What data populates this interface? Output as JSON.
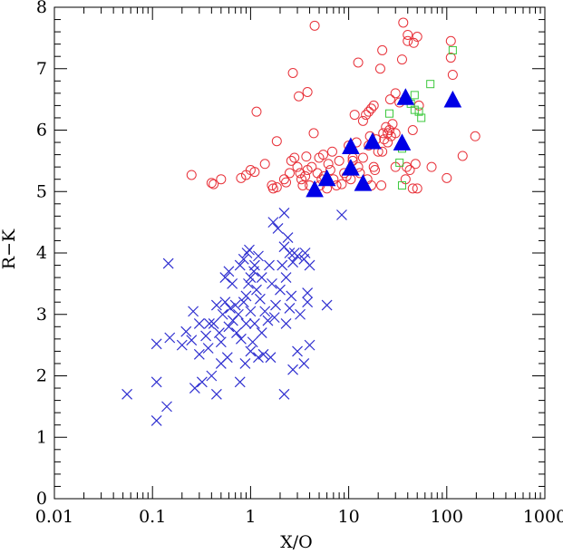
{
  "chart_data": {
    "type": "scatter",
    "xlabel": "X/O",
    "ylabel": "R−K",
    "xscale": "log",
    "xlim": [
      0.01,
      1000
    ],
    "ylim": [
      0,
      8
    ],
    "x_ticks": [
      0.01,
      0.1,
      1,
      10,
      100,
      1000
    ],
    "x_tick_labels": [
      "0.01",
      "0.1",
      "1",
      "10",
      "100",
      "1000"
    ],
    "y_ticks": [
      0,
      1,
      2,
      3,
      4,
      5,
      6,
      7,
      8
    ],
    "y_tick_labels": [
      "0",
      "1",
      "2",
      "3",
      "4",
      "5",
      "6",
      "7",
      "8"
    ],
    "grid": false,
    "series": [
      {
        "marker": "cross",
        "color": "#2f2fd0",
        "points": [
          [
            0.055,
            1.7
          ],
          [
            0.11,
            1.27
          ],
          [
            0.11,
            1.9
          ],
          [
            0.11,
            2.52
          ],
          [
            0.14,
            1.5
          ],
          [
            0.145,
            3.83
          ],
          [
            0.15,
            2.62
          ],
          [
            0.2,
            2.5
          ],
          [
            0.22,
            2.72
          ],
          [
            0.25,
            2.58
          ],
          [
            0.26,
            3.05
          ],
          [
            0.27,
            1.8
          ],
          [
            0.3,
            2.35
          ],
          [
            0.3,
            2.85
          ],
          [
            0.32,
            1.9
          ],
          [
            0.35,
            2.65
          ],
          [
            0.37,
            2.45
          ],
          [
            0.38,
            2.85
          ],
          [
            0.4,
            2.0
          ],
          [
            0.42,
            2.85
          ],
          [
            0.45,
            1.7
          ],
          [
            0.45,
            3.15
          ],
          [
            0.48,
            2.7
          ],
          [
            0.5,
            2.2
          ],
          [
            0.5,
            2.55
          ],
          [
            0.52,
            3.0
          ],
          [
            0.55,
            3.2
          ],
          [
            0.55,
            3.6
          ],
          [
            0.58,
            2.3
          ],
          [
            0.6,
            2.8
          ],
          [
            0.6,
            3.7
          ],
          [
            0.62,
            3.1
          ],
          [
            0.65,
            3.5
          ],
          [
            0.66,
            2.9
          ],
          [
            0.7,
            3.15
          ],
          [
            0.72,
            2.7
          ],
          [
            0.75,
            3.0
          ],
          [
            0.78,
            1.9
          ],
          [
            0.78,
            3.8
          ],
          [
            0.8,
            2.6
          ],
          [
            0.85,
            3.2
          ],
          [
            0.85,
            3.9
          ],
          [
            0.88,
            2.2
          ],
          [
            0.9,
            2.85
          ],
          [
            0.9,
            3.3
          ],
          [
            0.92,
            4.0
          ],
          [
            0.95,
            3.5
          ],
          [
            0.97,
            4.05
          ],
          [
            1.0,
            2.4
          ],
          [
            1.0,
            3.05
          ],
          [
            1.0,
            3.6
          ],
          [
            1.05,
            2.55
          ],
          [
            1.08,
            3.7
          ],
          [
            1.1,
            2.85
          ],
          [
            1.1,
            3.8
          ],
          [
            1.15,
            3.4
          ],
          [
            1.2,
            3.95
          ],
          [
            1.2,
            2.3
          ],
          [
            1.25,
            3.25
          ],
          [
            1.3,
            3.6
          ],
          [
            1.3,
            2.7
          ],
          [
            1.35,
            2.35
          ],
          [
            1.4,
            3.05
          ],
          [
            1.5,
            2.9
          ],
          [
            1.55,
            3.8
          ],
          [
            1.6,
            2.3
          ],
          [
            1.65,
            3.5
          ],
          [
            1.7,
            4.5
          ],
          [
            1.75,
            2.95
          ],
          [
            1.8,
            3.15
          ],
          [
            1.9,
            4.4
          ],
          [
            2.0,
            3.4
          ],
          [
            2.1,
            3.8
          ],
          [
            2.2,
            4.1
          ],
          [
            2.2,
            4.65
          ],
          [
            2.2,
            1.7
          ],
          [
            2.3,
            2.85
          ],
          [
            2.3,
            3.6
          ],
          [
            2.4,
            4.25
          ],
          [
            2.5,
            3.1
          ],
          [
            2.5,
            4.0
          ],
          [
            2.6,
            3.3
          ],
          [
            2.7,
            2.1
          ],
          [
            2.7,
            3.85
          ],
          [
            2.8,
            4.0
          ],
          [
            3.0,
            2.4
          ],
          [
            3.0,
            3.95
          ],
          [
            3.2,
            3.0
          ],
          [
            3.5,
            3.9
          ],
          [
            3.5,
            2.2
          ],
          [
            3.6,
            4.0
          ],
          [
            3.8,
            3.2
          ],
          [
            3.8,
            3.35
          ],
          [
            4.0,
            3.8
          ],
          [
            4.0,
            2.5
          ],
          [
            6.0,
            3.15
          ],
          [
            8.5,
            4.62
          ]
        ]
      },
      {
        "marker": "circle",
        "color": "#e8323a",
        "points": [
          [
            0.25,
            5.27
          ],
          [
            0.4,
            5.14
          ],
          [
            0.42,
            5.12
          ],
          [
            0.5,
            5.2
          ],
          [
            0.8,
            5.22
          ],
          [
            0.9,
            5.27
          ],
          [
            1.0,
            5.35
          ],
          [
            1.1,
            5.32
          ],
          [
            1.15,
            6.3
          ],
          [
            1.4,
            5.45
          ],
          [
            1.65,
            5.1
          ],
          [
            1.7,
            5.05
          ],
          [
            1.85,
            5.07
          ],
          [
            1.85,
            5.82
          ],
          [
            2.2,
            5.2
          ],
          [
            2.3,
            5.15
          ],
          [
            2.5,
            5.3
          ],
          [
            2.6,
            5.5
          ],
          [
            2.7,
            6.93
          ],
          [
            2.8,
            5.55
          ],
          [
            3.0,
            5.4
          ],
          [
            3.1,
            6.55
          ],
          [
            3.2,
            5.3
          ],
          [
            3.3,
            5.2
          ],
          [
            3.4,
            5.1
          ],
          [
            3.6,
            5.25
          ],
          [
            3.7,
            5.57
          ],
          [
            3.8,
            6.62
          ],
          [
            3.8,
            5.35
          ],
          [
            4.0,
            5.1
          ],
          [
            4.2,
            5.4
          ],
          [
            4.4,
            5.95
          ],
          [
            4.5,
            7.7
          ],
          [
            4.8,
            5.3
          ],
          [
            5.0,
            5.55
          ],
          [
            5.1,
            5.1
          ],
          [
            5.3,
            5.2
          ],
          [
            5.5,
            5.6
          ],
          [
            5.6,
            5.25
          ],
          [
            6.0,
            5.05
          ],
          [
            6.2,
            5.45
          ],
          [
            6.5,
            5.35
          ],
          [
            6.8,
            5.65
          ],
          [
            7.0,
            5.2
          ],
          [
            7.5,
            5.1
          ],
          [
            8.0,
            5.5
          ],
          [
            8.5,
            5.12
          ],
          [
            9.0,
            5.3
          ],
          [
            9.5,
            5.25
          ],
          [
            10.0,
            5.75
          ],
          [
            10.5,
            5.2
          ],
          [
            11.0,
            5.5
          ],
          [
            11.0,
            5.55
          ],
          [
            11.5,
            6.25
          ],
          [
            12.0,
            5.8
          ],
          [
            12.5,
            5.4
          ],
          [
            12.5,
            7.1
          ],
          [
            13.0,
            5.3
          ],
          [
            14.0,
            5.55
          ],
          [
            14.0,
            6.15
          ],
          [
            15.0,
            6.25
          ],
          [
            15.5,
            5.2
          ],
          [
            16.0,
            5.75
          ],
          [
            16.0,
            6.3
          ],
          [
            16.5,
            5.9
          ],
          [
            17.0,
            6.35
          ],
          [
            17.0,
            5.1
          ],
          [
            18.0,
            5.4
          ],
          [
            18.0,
            6.4
          ],
          [
            18.5,
            5.35
          ],
          [
            19.0,
            5.85
          ],
          [
            20.0,
            5.65
          ],
          [
            21.0,
            7.0
          ],
          [
            21.5,
            5.1
          ],
          [
            22.0,
            7.3
          ],
          [
            22.0,
            5.65
          ],
          [
            22.5,
            5.95
          ],
          [
            23.0,
            5.85
          ],
          [
            24.0,
            6.05
          ],
          [
            25.0,
            5.8
          ],
          [
            25.0,
            5.95
          ],
          [
            26.0,
            6.0
          ],
          [
            26.5,
            6.5
          ],
          [
            27.0,
            5.9
          ],
          [
            28.0,
            6.1
          ],
          [
            30.0,
            5.95
          ],
          [
            30.0,
            6.6
          ],
          [
            30.0,
            5.4
          ],
          [
            33.0,
            6.45
          ],
          [
            35.0,
            7.15
          ],
          [
            36.0,
            7.75
          ],
          [
            38.0,
            5.2
          ],
          [
            39.0,
            5.4
          ],
          [
            40.0,
            7.55
          ],
          [
            40.0,
            7.45
          ],
          [
            42.0,
            5.35
          ],
          [
            45.0,
            5.05
          ],
          [
            45.0,
            6.0
          ],
          [
            46.0,
            7.42
          ],
          [
            48.0,
            5.45
          ],
          [
            50.0,
            7.52
          ],
          [
            50.0,
            5.05
          ],
          [
            52.0,
            6.4
          ],
          [
            70.0,
            5.4
          ],
          [
            100.0,
            5.22
          ],
          [
            110.0,
            7.45
          ],
          [
            110.0,
            7.18
          ],
          [
            115.0,
            6.9
          ],
          [
            145.0,
            5.58
          ],
          [
            195.0,
            5.9
          ]
        ]
      },
      {
        "marker": "square",
        "color": "#3cc83c",
        "points": [
          [
            26.0,
            6.27
          ],
          [
            33.0,
            5.47
          ],
          [
            35.0,
            5.1
          ],
          [
            35.0,
            5.7
          ],
          [
            43.0,
            6.43
          ],
          [
            47.0,
            6.57
          ],
          [
            47.0,
            6.33
          ],
          [
            52.0,
            6.3
          ],
          [
            55.0,
            6.2
          ],
          [
            68.0,
            6.75
          ],
          [
            115.0,
            7.3
          ]
        ]
      },
      {
        "marker": "triangle",
        "color": "#0000e6",
        "points": [
          [
            4.5,
            5.02
          ],
          [
            6.0,
            5.2
          ],
          [
            10.5,
            5.37
          ],
          [
            10.5,
            5.72
          ],
          [
            14.0,
            5.12
          ],
          [
            17.5,
            5.8
          ],
          [
            35.0,
            5.78
          ],
          [
            38.0,
            6.52
          ],
          [
            115.0,
            6.48
          ]
        ]
      }
    ]
  }
}
